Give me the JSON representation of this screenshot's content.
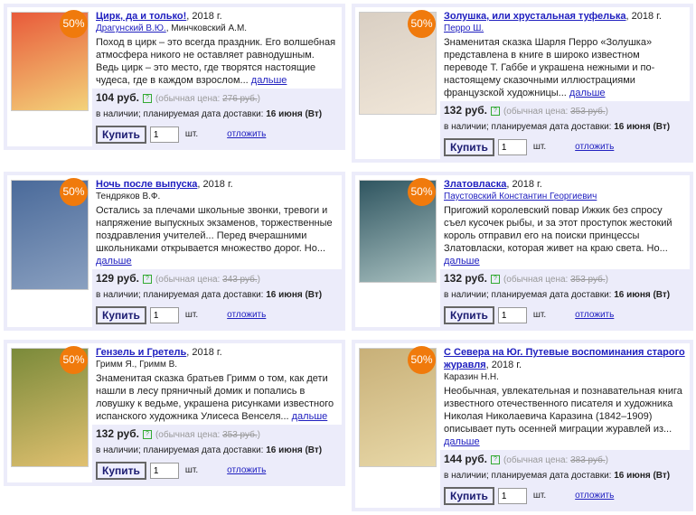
{
  "common": {
    "badge": "50%",
    "currency": "руб.",
    "old_price_label": "(обычная цена:",
    "old_price_close": ")",
    "in_stock": "в наличии",
    "delivery_label": "; планируемая дата доставки:",
    "delivery_date": "16 июня (Вт)",
    "buy_label": "Купить",
    "qty_value": "1",
    "unit": "шт.",
    "defer_label": "отложить",
    "more_label": "дальше",
    "help_icon": "?"
  },
  "colors": {
    "badge": "#f07a0c",
    "link": "#2020c0",
    "card_bg": "#ececfa"
  },
  "books": [
    {
      "title": "Цирк, да и только!",
      "year": ", 2018 г.",
      "authors_linked": "Драгунский В.Ю.",
      "authors_plain": ", Минчковский А.М.",
      "description": "Поход в цирк – это всегда праздник. Его волшебная атмосфера никого не оставляет равнодушным. Ведь цирк – это место, где творятся настоящие чудеса, где в каждом взрослом...",
      "price": "104",
      "old_price": "276 руб.",
      "cover_colors": [
        "#e85a3a",
        "#f3d27a"
      ]
    },
    {
      "title": "Золушка, или хрустальная туфелька",
      "year": ", 2018 г.",
      "authors_linked": "Перро Ш.",
      "authors_plain": "",
      "description": "Знаменитая сказка Шарля Перро «Золушка» представлена в книге в широко известном переводе Т. Габбе и украшена нежными и по-настоящему сказочными иллюстрациями французской художницы...",
      "price": "132",
      "old_price": "353 руб.",
      "cover_colors": [
        "#d9cfc3",
        "#f0e6d8"
      ]
    },
    {
      "title": "Ночь после выпуска",
      "year": ", 2018 г.",
      "authors_linked": "",
      "authors_plain": "Тендряков В.Ф.",
      "description": "Остались за плечами школьные звонки, тревоги и напряжение выпускных экзаменов, торжественные поздравления учителей... Перед вчерашними школьниками открывается множество дорог. Но...",
      "price": "129",
      "old_price": "343 руб.",
      "cover_colors": [
        "#4a6a9a",
        "#8aa0c0"
      ]
    },
    {
      "title": "Златовласка",
      "year": ", 2018 г.",
      "authors_linked": "Паустовский Константин Георгиевич",
      "authors_plain": "",
      "description": "Пригожий королевский повар Ижкик без спросу съел кусочек рыбы, и за этот проступок жестокий король отправил его на поиски принцессы Златовласки, которая живет на краю света. Но...",
      "price": "132",
      "old_price": "353 руб.",
      "cover_colors": [
        "#2f5560",
        "#a8c0c0"
      ]
    },
    {
      "title": "Гензель и Гретель",
      "year": ", 2018 г.",
      "authors_linked": "",
      "authors_plain": "Гримм Я., Гримм В.",
      "description": "Знаменитая сказка братьев Гримм о том, как дети нашли в лесу пряничный домик и попались в ловушку к ведьме, украшена рисунками известного испанского художника Улисеса Венселя...",
      "price": "132",
      "old_price": "353 руб.",
      "cover_colors": [
        "#7a8a3a",
        "#e0c070"
      ]
    },
    {
      "title": "С Севера на Юг. Путевые воспоминания старого журавля",
      "year": ", 2018 г.",
      "authors_linked": "",
      "authors_plain": "Каразин Н.Н.",
      "description": "Необычная, увлекательная и познавательная книга известного отечественного писателя и художника Николая Николаевича Каразина (1842–1909) описывает путь осенней миграции журавлей из...",
      "price": "144",
      "old_price": "383 руб.",
      "cover_colors": [
        "#c8b078",
        "#e8d8a8"
      ]
    }
  ]
}
